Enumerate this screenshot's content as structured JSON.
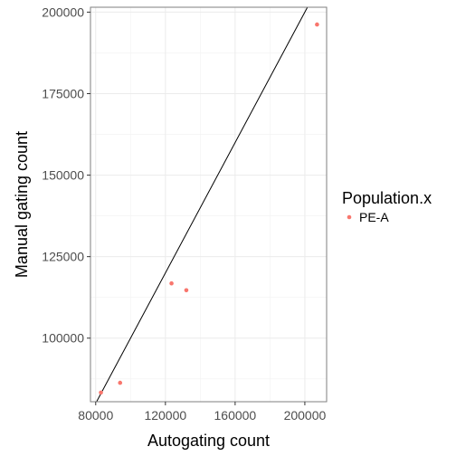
{
  "chart_data": {
    "type": "scatter",
    "xlabel": "Autogating count",
    "ylabel": "Manual gating count",
    "xlim": [
      77000,
      212500
    ],
    "ylim": [
      80500,
      201500
    ],
    "x_ticks": [
      80000,
      120000,
      160000,
      200000
    ],
    "y_ticks": [
      100000,
      125000,
      150000,
      175000,
      200000
    ],
    "x_tick_labels": [
      "80000",
      "120000",
      "160000",
      "200000"
    ],
    "y_tick_labels": [
      "100000",
      "125000",
      "150000",
      "175000",
      "200000"
    ],
    "grid": true,
    "legend": {
      "title": "Population.x",
      "position": "right"
    },
    "series": [
      {
        "name": "PE-A",
        "color": "#F8766D",
        "points": [
          {
            "x": 83000,
            "y": 83300
          },
          {
            "x": 94000,
            "y": 86300
          },
          {
            "x": 123500,
            "y": 116800
          },
          {
            "x": 132000,
            "y": 114700
          },
          {
            "x": 207000,
            "y": 196200
          }
        ]
      }
    ],
    "reference_line": {
      "type": "identity",
      "slope": 1,
      "intercept": 0,
      "color": "#000000"
    }
  }
}
